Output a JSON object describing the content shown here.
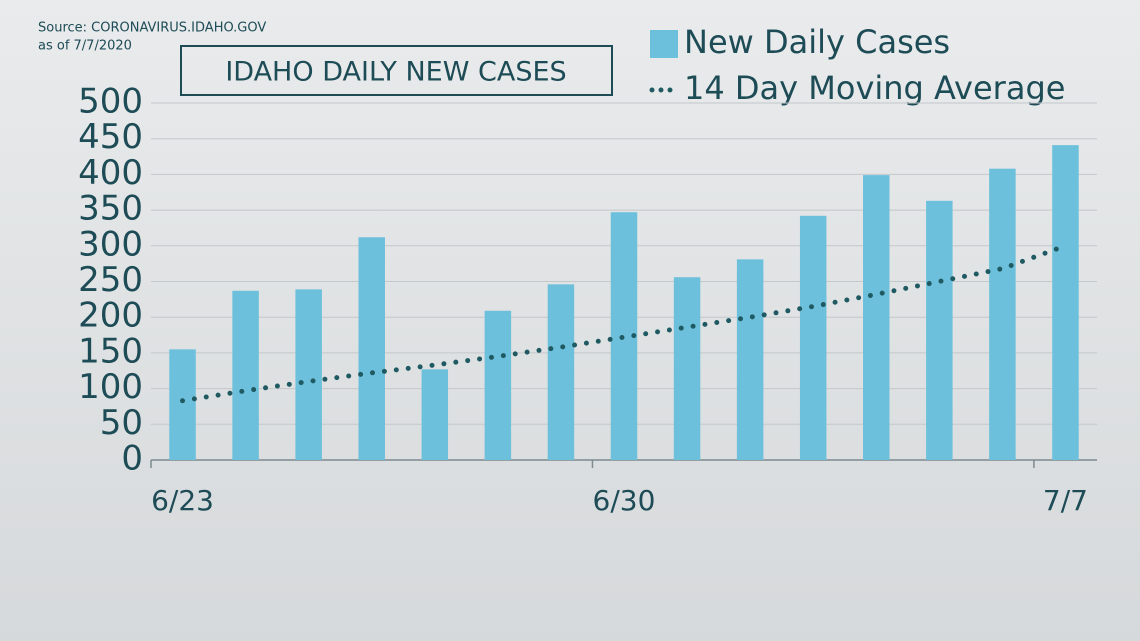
{
  "chart_data": {
    "type": "bar",
    "title": "IDAHO DAILY NEW CASES",
    "notes": [
      "Source: CORONAVIRUS.IDAHO.GOV",
      "as of 7/7/2020"
    ],
    "categories": [
      "6/23",
      null,
      null,
      null,
      null,
      null,
      null,
      "6/30",
      null,
      null,
      null,
      null,
      null,
      null,
      "7/7"
    ],
    "series": [
      {
        "name": "New Daily Cases",
        "type": "bar",
        "color": "#6cc0dc",
        "values": [
          155,
          237,
          239,
          312,
          127,
          209,
          246,
          347,
          256,
          281,
          342,
          399,
          363,
          408,
          441
        ]
      },
      {
        "name": "14 Day Moving Average",
        "type": "line",
        "color": "#1f5a62",
        "values": [
          83,
          97,
          110,
          122,
          133,
          145,
          158,
          172,
          186,
          200,
          215,
          232,
          250,
          268,
          300
        ]
      }
    ],
    "ylim": [
      0,
      500
    ],
    "yticks": [
      0,
      50,
      100,
      150,
      200,
      250,
      300,
      350,
      400,
      450,
      500
    ],
    "grid": true
  }
}
